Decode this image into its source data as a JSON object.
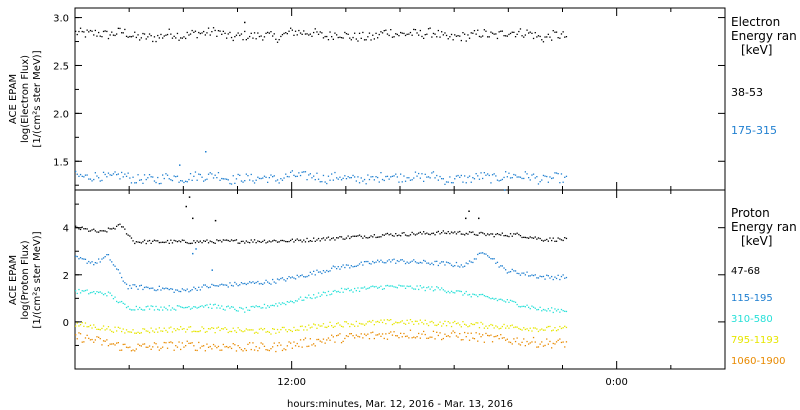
{
  "chart_data": [
    {
      "type": "scatter",
      "panel": "electron",
      "ylabel_lines": [
        "ACE EPAM",
        "log(Electron Flux)",
        "[1/(cm²s ster MeV)]"
      ],
      "ylim": [
        1.2,
        3.1
      ],
      "yticks": [
        1.5,
        2.0,
        2.5,
        3.0
      ],
      "ytick_labels": [
        "1.5",
        "2.0",
        "2.5",
        "3.0"
      ],
      "legend_title": [
        "Electron",
        "Energy ran",
        "[keV]"
      ],
      "series": [
        {
          "name": "38-53",
          "color": "#000000",
          "mean": 2.82,
          "spread": 0.05,
          "amp": [
            0.02,
            0.015,
            0.01
          ],
          "spikes": [
            [
              0.26,
              2.95
            ]
          ]
        },
        {
          "name": "175-315",
          "color": "#1f7fd0",
          "mean": 1.33,
          "spread": 0.05,
          "amp": [
            0.015,
            0.01,
            0.01
          ],
          "spikes": [
            [
              0.2,
              1.6
            ],
            [
              0.16,
              1.46
            ],
            [
              0.66,
              1.2
            ]
          ]
        }
      ]
    },
    {
      "type": "scatter",
      "panel": "proton",
      "ylabel_lines": [
        "ACE EPAM",
        "log(Proton Flux)",
        "[1/(cm²s ster MeV)]"
      ],
      "ylim": [
        -2.0,
        5.6
      ],
      "yticks": [
        0,
        2,
        4
      ],
      "ytick_labels": [
        "0",
        "2",
        "4"
      ],
      "legend_title": [
        "Proton",
        "Energy ran",
        "[keV]"
      ],
      "series": [
        {
          "name": "47-68",
          "color": "#000000",
          "mean": 3.45,
          "spread": 0.08,
          "profile": [
            [
              0.0,
              4.0
            ],
            [
              0.04,
              3.8
            ],
            [
              0.07,
              4.1
            ],
            [
              0.09,
              3.4
            ],
            [
              0.18,
              3.4
            ],
            [
              0.34,
              3.45
            ],
            [
              0.48,
              3.7
            ],
            [
              0.58,
              3.8
            ],
            [
              0.64,
              3.7
            ],
            [
              0.68,
              3.7
            ],
            [
              0.72,
              3.5
            ]
          ],
          "spikes": [
            [
              0.17,
              4.9
            ],
            [
              0.175,
              5.3
            ],
            [
              0.18,
              4.4
            ],
            [
              0.215,
              4.3
            ],
            [
              0.6,
              4.4
            ],
            [
              0.605,
              4.7
            ],
            [
              0.62,
              4.4
            ]
          ]
        },
        {
          "name": "115-195",
          "color": "#1f7fd0",
          "mean": 2.0,
          "spread": 0.1,
          "profile": [
            [
              0.0,
              2.7
            ],
            [
              0.03,
              2.5
            ],
            [
              0.05,
              2.8
            ],
            [
              0.08,
              1.5
            ],
            [
              0.14,
              1.4
            ],
            [
              0.16,
              1.3
            ],
            [
              0.2,
              1.5
            ],
            [
              0.25,
              1.6
            ],
            [
              0.3,
              1.7
            ],
            [
              0.34,
              1.9
            ],
            [
              0.4,
              2.3
            ],
            [
              0.48,
              2.6
            ],
            [
              0.55,
              2.5
            ],
            [
              0.6,
              2.4
            ],
            [
              0.63,
              3.0
            ],
            [
              0.66,
              2.2
            ],
            [
              0.72,
              1.9
            ]
          ],
          "spikes": [
            [
              0.18,
              2.9
            ],
            [
              0.185,
              3.1
            ],
            [
              0.21,
              2.2
            ]
          ]
        },
        {
          "name": "310-580",
          "color": "#27e0d8",
          "mean": 1.0,
          "spread": 0.1,
          "profile": [
            [
              0.0,
              1.3
            ],
            [
              0.05,
              1.2
            ],
            [
              0.08,
              0.6
            ],
            [
              0.16,
              0.6
            ],
            [
              0.2,
              0.7
            ],
            [
              0.26,
              0.5
            ],
            [
              0.32,
              0.8
            ],
            [
              0.4,
              1.3
            ],
            [
              0.48,
              1.5
            ],
            [
              0.56,
              1.4
            ],
            [
              0.62,
              1.1
            ],
            [
              0.66,
              0.9
            ],
            [
              0.72,
              0.5
            ]
          ]
        },
        {
          "name": "795-1193",
          "color": "#e6e600",
          "mean": -0.2,
          "spread": 0.12,
          "profile": [
            [
              0.0,
              -0.1
            ],
            [
              0.08,
              -0.4
            ],
            [
              0.16,
              -0.3
            ],
            [
              0.3,
              -0.4
            ],
            [
              0.4,
              -0.1
            ],
            [
              0.5,
              0.0
            ],
            [
              0.6,
              -0.1
            ],
            [
              0.72,
              -0.3
            ]
          ]
        },
        {
          "name": "1060-1900",
          "color": "#e88a00",
          "mean": -0.8,
          "spread": 0.2,
          "profile": [
            [
              0.0,
              -0.6
            ],
            [
              0.08,
              -1.1
            ],
            [
              0.16,
              -1.0
            ],
            [
              0.3,
              -1.1
            ],
            [
              0.4,
              -0.7
            ],
            [
              0.5,
              -0.5
            ],
            [
              0.6,
              -0.6
            ],
            [
              0.72,
              -0.9
            ]
          ]
        }
      ]
    }
  ],
  "x_axis": {
    "label": "hours:minutes, Mar. 12, 2016 - Mar. 13, 2016",
    "tick_labels": [
      {
        "pos": 0.3333,
        "text": "12:00"
      },
      {
        "pos": 0.8333,
        "text": "0:00"
      }
    ],
    "n_minor": 12
  },
  "colors": {
    "frame": "#000000",
    "background": "#ffffff"
  }
}
